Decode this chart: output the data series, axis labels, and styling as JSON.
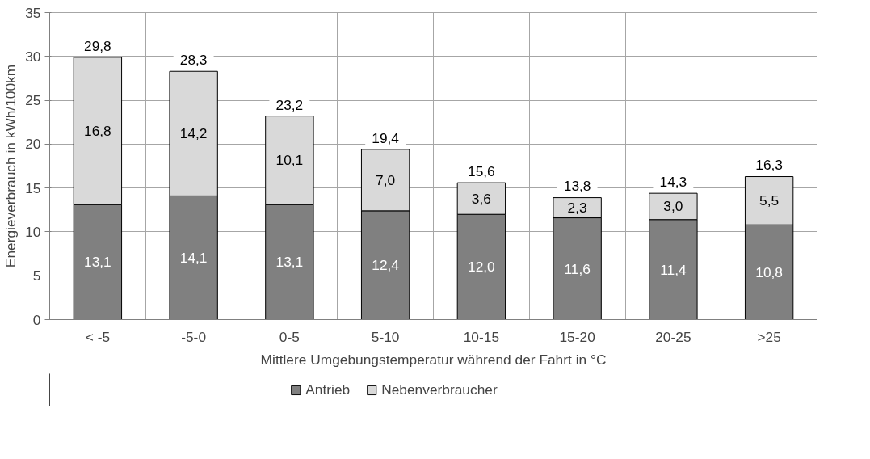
{
  "chart_data": {
    "type": "bar",
    "stacked": true,
    "xlabel": "Mittlere Umgebungstemperatur während der Fahrt in °C",
    "ylabel": "Energieverbrauch in kWh/100km",
    "categories": [
      "< -5",
      "-5-0",
      "0-5",
      "5-10",
      "10-15",
      "15-20",
      "20-25",
      ">25"
    ],
    "series": [
      {
        "name": "Antrieb",
        "color": "#808080",
        "values": [
          13.1,
          14.1,
          13.1,
          12.4,
          12.0,
          11.6,
          11.4,
          10.8
        ],
        "value_labels": [
          "13,1",
          "14,1",
          "13,1",
          "12,4",
          "12,0",
          "11,6",
          "11,4",
          "10,8"
        ]
      },
      {
        "name": "Nebenverbraucher",
        "color": "#d9d9d9",
        "values": [
          16.8,
          14.2,
          10.1,
          7.0,
          3.6,
          2.3,
          3.0,
          5.5
        ],
        "value_labels": [
          "16,8",
          "14,2",
          "10,1",
          "7,0",
          "3,6",
          "2,3",
          "3,0",
          "5,5"
        ]
      }
    ],
    "totals": [
      "29,8",
      "28,3",
      "23,2",
      "19,4",
      "15,6",
      "13,8",
      "14,3",
      "16,3"
    ],
    "ylim": [
      0,
      35
    ],
    "yticks": [
      0,
      5,
      10,
      15,
      20,
      25,
      30,
      35
    ],
    "grid": true,
    "legend": "bottom"
  }
}
